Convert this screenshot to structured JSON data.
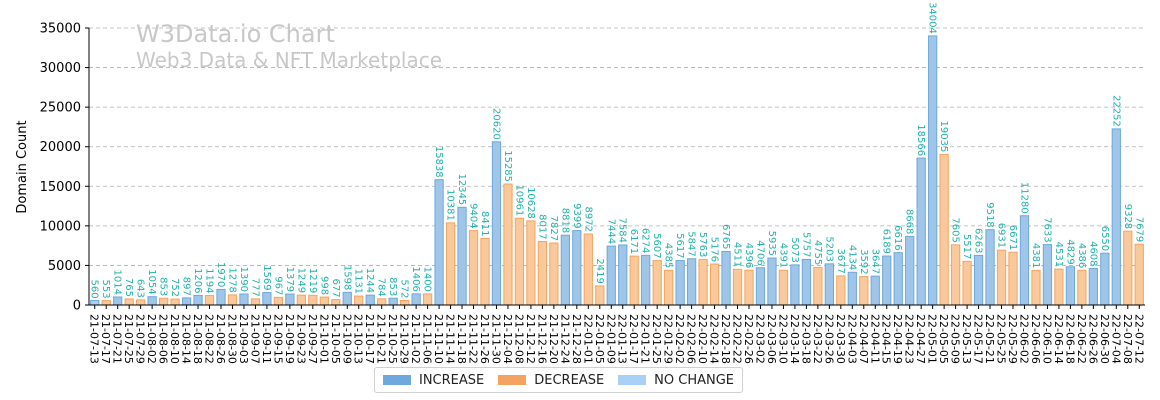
{
  "watermark": {
    "title": "W3Data.io Chart",
    "subtitle": "Web3 Data & NFT Marketplace"
  },
  "legend": [
    {
      "label": "INCREASE",
      "color": "#6fa8dc"
    },
    {
      "label": "DECREASE",
      "color": "#f4a460"
    },
    {
      "label": "NO CHANGE",
      "color": "#a8d1f5"
    }
  ],
  "chart_data": {
    "type": "bar",
    "ylabel": "Domain Count",
    "xlabel": "",
    "ylim": [
      0,
      35000
    ],
    "yticks": [
      0,
      5000,
      10000,
      15000,
      20000,
      25000,
      30000,
      35000
    ],
    "grid": true,
    "legend_position": "bottom-center",
    "categories": [
      "21-07-13",
      "21-07-17",
      "21-07-21",
      "21-07-25",
      "21-07-29",
      "21-08-02",
      "21-08-06",
      "21-08-10",
      "21-08-14",
      "21-08-18",
      "21-08-22",
      "21-08-26",
      "21-08-30",
      "21-09-03",
      "21-09-07",
      "21-09-11",
      "21-09-15",
      "21-09-19",
      "21-09-23",
      "21-09-27",
      "21-10-01",
      "21-10-05",
      "21-10-09",
      "21-10-13",
      "21-10-17",
      "21-10-21",
      "21-10-25",
      "21-10-29",
      "21-11-02",
      "21-11-06",
      "21-11-10",
      "21-11-14",
      "21-11-18",
      "21-11-22",
      "21-11-26",
      "21-11-30",
      "21-12-04",
      "21-12-08",
      "21-12-12",
      "21-12-16",
      "21-12-20",
      "21-12-24",
      "21-12-28",
      "22-01-01",
      "22-01-05",
      "22-01-09",
      "22-01-13",
      "22-01-17",
      "22-01-21",
      "22-01-25",
      "22-01-29",
      "22-02-02",
      "22-02-06",
      "22-02-10",
      "22-02-14",
      "22-02-18",
      "22-02-22",
      "22-02-26",
      "22-03-02",
      "22-03-06",
      "22-03-10",
      "22-03-14",
      "22-03-18",
      "22-03-22",
      "22-03-26",
      "22-03-30",
      "22-04-03",
      "22-04-07",
      "22-04-11",
      "22-04-15",
      "22-04-19",
      "22-04-23",
      "22-04-27",
      "22-05-01",
      "22-05-05",
      "22-05-09",
      "22-05-13",
      "22-05-17",
      "22-05-21",
      "22-05-25",
      "22-05-29",
      "22-06-02",
      "22-06-06",
      "22-06-10",
      "22-06-14",
      "22-06-18",
      "22-06-22",
      "22-06-26",
      "22-06-30",
      "22-07-04",
      "22-07-08",
      "22-07-12"
    ],
    "series": [
      {
        "name": "Domain Count",
        "values": [
          560,
          553,
          1014,
          765,
          643,
          1054,
          853,
          752,
          897,
          1206,
          1194,
          1970,
          1278,
          1390,
          777,
          1569,
          967,
          1379,
          1249,
          1219,
          998,
          677,
          1598,
          1131,
          1244,
          784,
          853,
          572,
          1406,
          1400,
          15838,
          10381,
          12345,
          9404,
          8411,
          20620,
          15285,
          10961,
          10628,
          8017,
          7827,
          8818,
          9399,
          8972,
          2419,
          7444,
          7584,
          6171,
          6274,
          5607,
          4385,
          5617,
          5847,
          5763,
          5176,
          6765,
          4511,
          4396,
          4706,
          5935,
          4391,
          5073,
          5757,
          4755,
          5203,
          3677,
          4134,
          3592,
          3647,
          6189,
          6616,
          8668,
          18566,
          34004,
          19035,
          7605,
          5517,
          6263,
          9518,
          6931,
          6671,
          11280,
          4381,
          7633,
          4531,
          4829,
          4386,
          4608,
          6550,
          22252,
          9328,
          7679
        ]
      }
    ],
    "labels": [
      "560",
      "553",
      "1014",
      "765",
      "643",
      "1054",
      "853",
      "752",
      "897",
      "1206",
      "1194",
      "1970",
      "1278",
      "1390",
      "777",
      "1569",
      "967",
      "1379",
      "1249",
      "1219",
      "998",
      "677",
      "1598",
      "1131",
      "1244",
      "784",
      "853",
      "572",
      "1406",
      "1400",
      "15838",
      "10381",
      "12345",
      "9404",
      "8411",
      "20620",
      "15285",
      "10961",
      "10628",
      "8017",
      "7827",
      "8818",
      "9399",
      "8972",
      "2419",
      "7444",
      "7584",
      "6171",
      "6274",
      "5607",
      "4385",
      "5617",
      "5847",
      "5763",
      "5176",
      "6765",
      "4511",
      "4396",
      "4706",
      "5935",
      "4391",
      "5073",
      "5757",
      "4755",
      "5203",
      "3677",
      "4134",
      "3592",
      "3647",
      "6189",
      "6616",
      "8668",
      "18566",
      "34004",
      "19035",
      "7605",
      "5517",
      "6263",
      "9518",
      "6931",
      "6671",
      "11280",
      "4381",
      "7633",
      "4531",
      "4829",
      "4386",
      "4608",
      "6550",
      "22252",
      "9328",
      "7679"
    ]
  },
  "colors": {
    "increase": "#6fa8dc",
    "increase_fill": "#9fc5e8",
    "decrease": "#f4a460",
    "decrease_fill": "#f9c89b",
    "nochange": "#a8d1f5",
    "label_text": "#20b2aa",
    "grid": "#b0b0b0"
  }
}
